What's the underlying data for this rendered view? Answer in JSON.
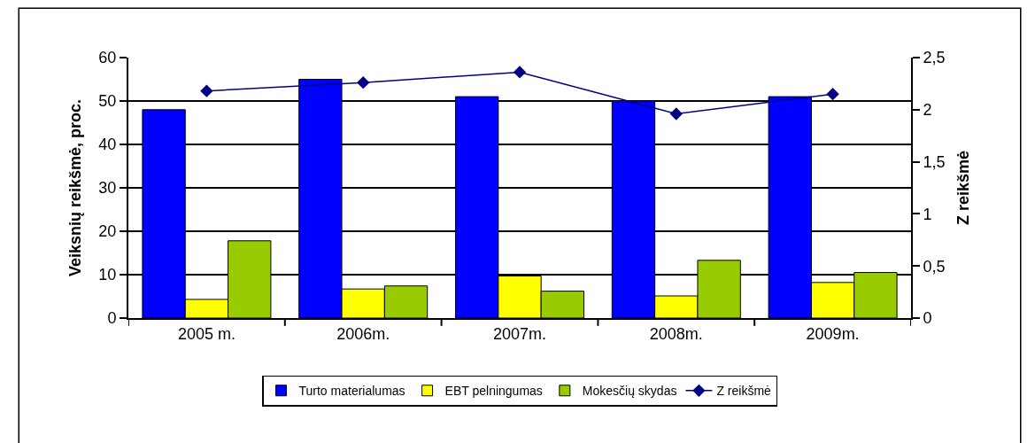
{
  "chart_data": {
    "type": "bar",
    "categories": [
      "2005 m.",
      "2006m.",
      "2007m.",
      "2008m.",
      "2009m."
    ],
    "ylabel": "Veiksnių reikšmė, proc.",
    "y2label": "Z reikšmė",
    "series": [
      {
        "name": "Turto materialumas",
        "color": "#0000ff",
        "values": [
          48,
          55,
          51,
          50,
          51
        ]
      },
      {
        "name": "EBT pelningumas",
        "color": "#ffff00",
        "values": [
          4.3,
          6.7,
          9.7,
          5.1,
          8.2
        ]
      },
      {
        "name": "Mokesčių skydas",
        "color": "#99cc00",
        "values": [
          17.8,
          7.4,
          6.2,
          13.3,
          10.5
        ]
      },
      {
        "name": "Z reikšmė",
        "type": "line",
        "axis": "y2",
        "color": "#000080",
        "marker": "diamond",
        "values": [
          2.18,
          2.26,
          2.36,
          1.96,
          2.15
        ]
      }
    ],
    "ylim": [
      0,
      60
    ],
    "yticks": [
      0,
      10,
      20,
      30,
      40,
      50,
      60
    ],
    "y2lim": [
      0,
      2.5
    ],
    "y2ticks": [
      0,
      {
        "value": 0.5,
        "label": "0,5"
      },
      1,
      {
        "value": 1.5,
        "label": "1,5"
      },
      2,
      {
        "value": 2.5,
        "label": "2,5"
      }
    ],
    "grid": "y",
    "legend": "bottom"
  }
}
